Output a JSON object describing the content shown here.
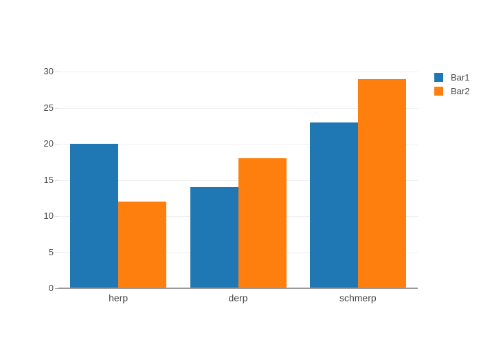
{
  "chart_data": {
    "type": "bar",
    "title": "",
    "categories": [
      "herp",
      "derp",
      "schmerp"
    ],
    "series": [
      {
        "name": "Bar1",
        "color": "#1f77b4",
        "values": [
          20,
          14,
          23
        ]
      },
      {
        "name": "Bar2",
        "color": "#ff7f0e",
        "values": [
          12,
          18,
          29
        ]
      }
    ],
    "xlabel": "",
    "ylabel": "",
    "ylim": [
      0,
      31.5
    ],
    "yticks": [
      0,
      5,
      10,
      15,
      20,
      25,
      30
    ],
    "grid": true,
    "legend_position": "right",
    "bar_mode": "grouped"
  },
  "colors": {
    "background": "#ffffff",
    "gridline": "#eeeeee",
    "tick_mark": "#dddddd",
    "axis_line": "#999999",
    "tick_text": "#444444",
    "legend_text": "#444444"
  }
}
